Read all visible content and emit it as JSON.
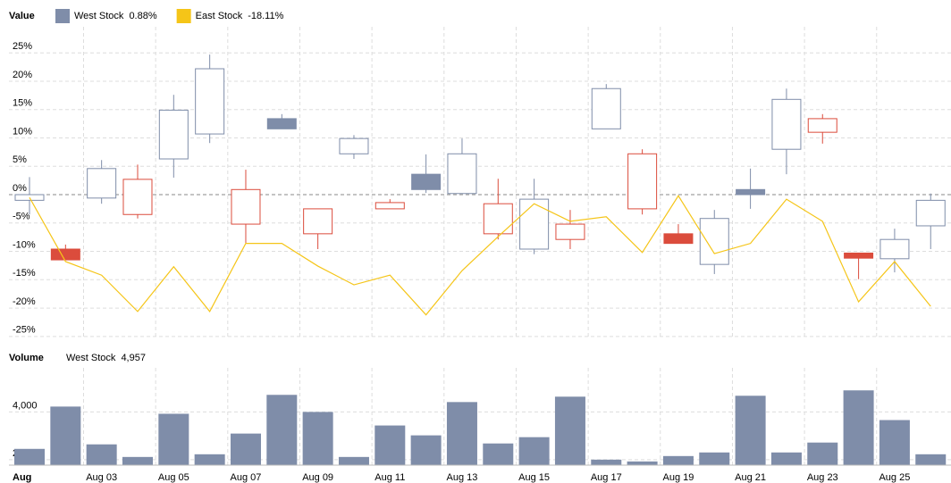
{
  "chart_data": [
    {
      "type": "candlestick",
      "title": "Value",
      "series": [
        {
          "name": "West Stock",
          "legend_value": "0.88%",
          "color": "#7f8da9",
          "down_color": "#db4c3c",
          "open": [
            -1,
            -9.6,
            -0.6,
            -3.5,
            6.3,
            10.7,
            -5.2,
            13.4,
            -6.9,
            7.2,
            -2.5,
            3.6,
            0.2,
            -6.9,
            -9.6,
            -7.9,
            11.6,
            -2.5,
            -6.9,
            -12.3,
            0.9,
            8.0,
            11.0,
            -10.3,
            -11.3,
            -5.5
          ],
          "high": [
            3.1,
            -8.8,
            6.1,
            5.3,
            17.6,
            24.7,
            4.4,
            14.2,
            -2.5,
            10.5,
            -0.8,
            7.1,
            9.9,
            2.8,
            2.8,
            -2.7,
            19.5,
            8.0,
            -5.2,
            -2.7,
            4.6,
            18.7,
            14.2,
            -10.3,
            -6.0,
            0.2
          ],
          "low": [
            -3.5,
            -11.5,
            -1.6,
            -4.2,
            3.0,
            9.1,
            -8.6,
            11.6,
            -9.6,
            6.3,
            -2.5,
            0.3,
            0.2,
            -7.9,
            -10.5,
            -9.6,
            11.6,
            -3.5,
            -8.6,
            -14.0,
            -2.5,
            3.6,
            9.0,
            -14.9,
            -13.7,
            -9.6
          ],
          "close": [
            0,
            -11.5,
            4.6,
            2.7,
            14.9,
            22.2,
            0.9,
            11.6,
            -2.5,
            9.9,
            -1.4,
            0.9,
            7.2,
            -1.6,
            -0.8,
            -5.2,
            18.7,
            7.2,
            -8.6,
            -4.2,
            0.0,
            16.8,
            13.4,
            -11.2,
            -7.9,
            -1.0
          ]
        },
        {
          "name": "East Stock",
          "legend_value": "-18.11%",
          "type": "line",
          "color": "#f5c518",
          "values": [
            -0.5,
            -11.8,
            -14.2,
            -20.6,
            -12.7,
            -20.6,
            -8.6,
            -8.6,
            -12.6,
            -15.9,
            -14.2,
            -21.2,
            -13.4,
            -7.4,
            -1.6,
            -4.7,
            -3.9,
            -10.2,
            -0.2,
            -10.4,
            -8.6,
            -0.8,
            -4.7,
            -18.9,
            -11.8,
            -19.7
          ]
        }
      ],
      "ylim": [
        -25.5,
        29.6
      ],
      "yticks": [
        {
          "value": -25,
          "label": "-25%"
        },
        {
          "value": -20,
          "label": "-20%"
        },
        {
          "value": -15,
          "label": "-15%"
        },
        {
          "value": -10,
          "label": "-10%"
        },
        {
          "value": -5,
          "label": "-5%"
        },
        {
          "value": 0,
          "label": "0%"
        },
        {
          "value": 5,
          "label": "5%"
        },
        {
          "value": 10,
          "label": "10%"
        },
        {
          "value": 15,
          "label": "15%"
        },
        {
          "value": 20,
          "label": "20%"
        },
        {
          "value": 25,
          "label": "25%"
        }
      ],
      "grid": true
    },
    {
      "type": "bar",
      "title": "Volume",
      "categories": [
        "Aug",
        null,
        "Aug 03",
        null,
        "Aug 05",
        null,
        "Aug 07",
        null,
        "Aug 09",
        null,
        "Aug 11",
        null,
        "Aug 13",
        null,
        "Aug 15",
        null,
        "Aug 17",
        null,
        "Aug 19",
        null,
        "Aug 21",
        null,
        "Aug 23",
        null,
        "Aug 25",
        null
      ],
      "series": [
        {
          "name": "West Stock",
          "legend_value": "4,957",
          "color": "#7f8da9",
          "values": [
            2452,
            4226,
            2641,
            2113,
            3924,
            2226,
            3094,
            4717,
            4000,
            2113,
            3433,
            3019,
            4415,
            2679,
            2943,
            4641,
            2000,
            1925,
            2151,
            2302,
            4679,
            2302,
            2717,
            4905,
            3660,
            2226
          ]
        }
      ],
      "ylim": [
        1770,
        5850
      ],
      "yticks": [
        {
          "value": 2000,
          "label": "2,000"
        },
        {
          "value": 4000,
          "label": "4,000"
        }
      ],
      "grid": true
    }
  ]
}
